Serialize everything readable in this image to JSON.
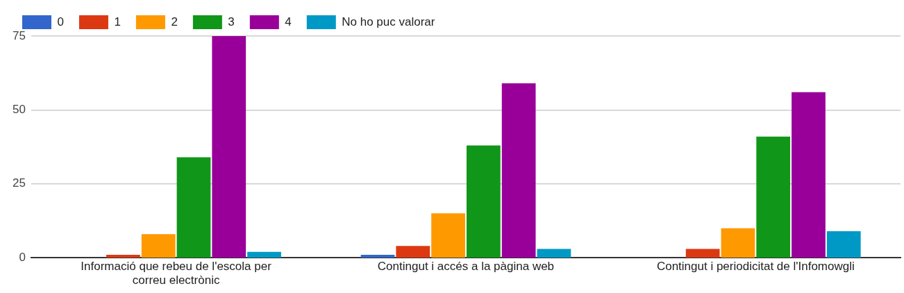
{
  "chart_data": {
    "type": "bar",
    "categories": [
      "Informació que rebeu de l'escola per correu electrònic",
      "Contingut i accés a la pàgina web",
      "Contingut i periodicitat de l'Infomowgli"
    ],
    "series": [
      {
        "name": "0",
        "color": "#3366cc",
        "values": [
          0,
          1,
          0
        ]
      },
      {
        "name": "1",
        "color": "#dc3912",
        "values": [
          1,
          4,
          3
        ]
      },
      {
        "name": "2",
        "color": "#ff9900",
        "values": [
          8,
          15,
          10
        ]
      },
      {
        "name": "3",
        "color": "#109618",
        "values": [
          34,
          38,
          41
        ]
      },
      {
        "name": "4",
        "color": "#990099",
        "values": [
          75,
          59,
          56
        ]
      },
      {
        "name": "No ho puc valorar",
        "color": "#0099c6",
        "values": [
          2,
          3,
          9
        ]
      }
    ],
    "ylim": [
      0,
      75
    ],
    "yticks": [
      0,
      25,
      50,
      75
    ],
    "grid": "y",
    "legend": "top left"
  }
}
